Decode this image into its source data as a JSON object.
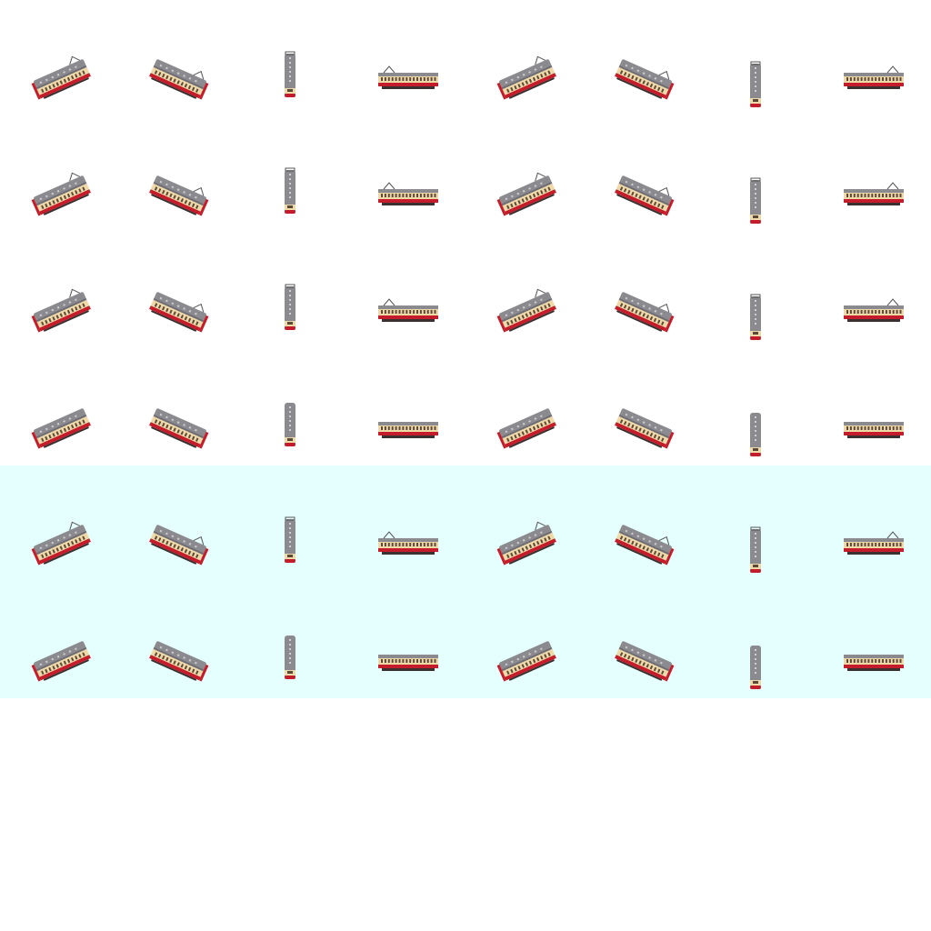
{
  "sprite_sheet": {
    "grid": {
      "columns": 8,
      "rows": 6,
      "frames": 48
    },
    "direction_cycle": [
      "ne",
      "se",
      "s",
      "w",
      "ne",
      "se",
      "s",
      "e"
    ],
    "rows": [
      {
        "pantograph": "high",
        "band": "plain"
      },
      {
        "pantograph": "high",
        "band": "plain"
      },
      {
        "pantograph": "high",
        "band": "plain"
      },
      {
        "pantograph": "none",
        "band": "plain"
      },
      {
        "pantograph": "high",
        "band": "highlight"
      },
      {
        "pantograph": "none",
        "band": "highlight"
      }
    ],
    "colors": {
      "background": "#ffffff",
      "highlight_band": "#e5ffff",
      "roof": "#8a8a8f",
      "roof_dark": "#6e6e74",
      "body_red": "#c41c2b",
      "body_cream": "#f0d9a8",
      "window": "#5a4a3a",
      "underframe": "#3a3030",
      "pantograph": "#555555"
    }
  }
}
